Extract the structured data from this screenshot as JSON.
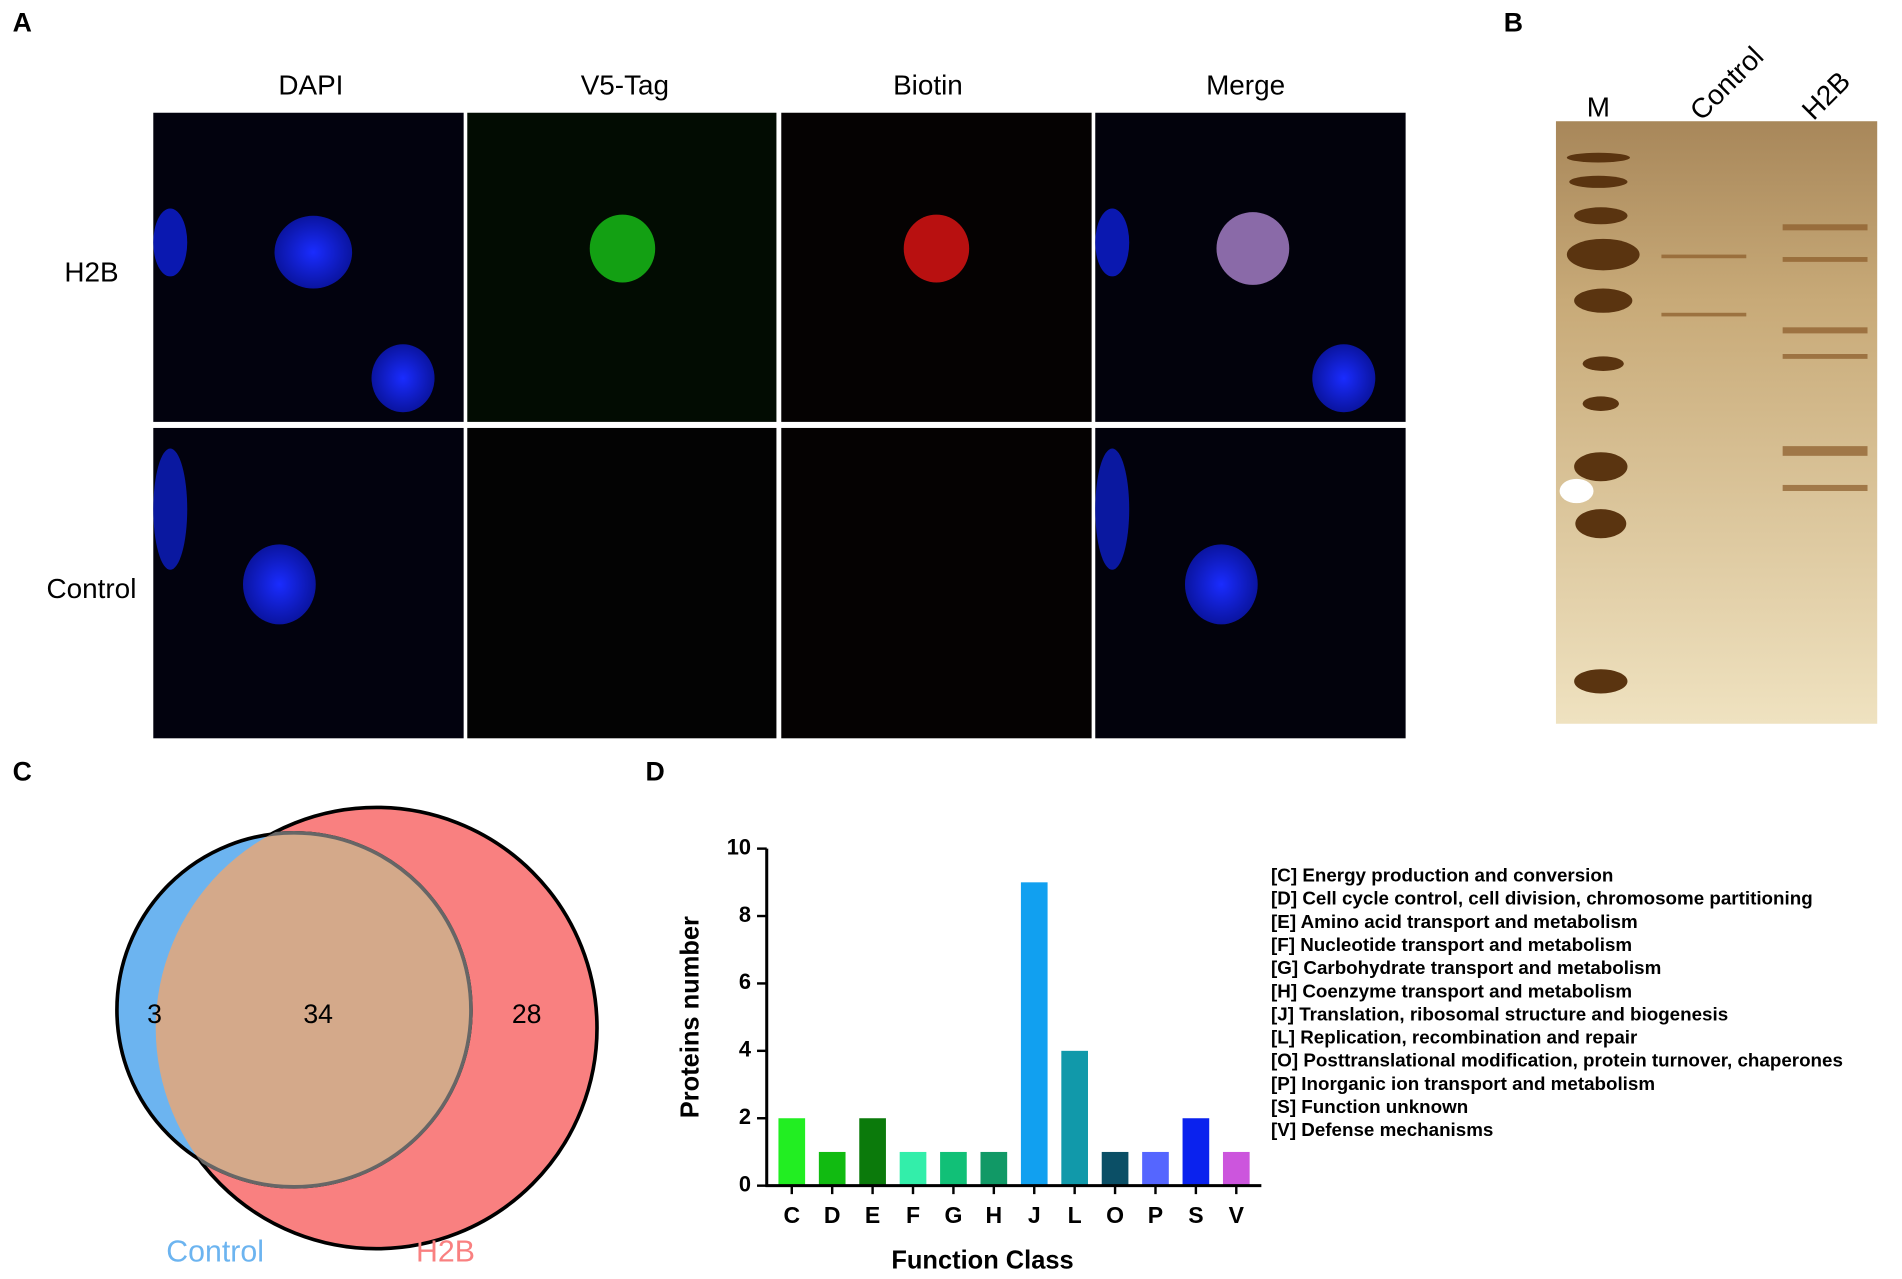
{
  "panel_labels": [
    "A",
    "B",
    "C",
    "D"
  ],
  "microscopy": {
    "columns": [
      "DAPI",
      "V5-Tag",
      "Biotin",
      "Merge"
    ],
    "rows": [
      "H2B",
      "Control"
    ]
  },
  "gel": {
    "lanes": [
      "M",
      "Control",
      "H2B"
    ]
  },
  "venn": {
    "sets": [
      {
        "name": "Control",
        "color": "#6cb4f0"
      },
      {
        "name": "H2B",
        "color": "#f98080"
      }
    ],
    "only_control": 3,
    "overlap": 34,
    "only_h2b": 28
  },
  "chart_data": {
    "type": "bar",
    "xlabel": "Function Class",
    "ylabel": "Proteins number",
    "categories": [
      "C",
      "D",
      "E",
      "F",
      "G",
      "H",
      "J",
      "L",
      "O",
      "P",
      "S",
      "V"
    ],
    "values": [
      2,
      1,
      2,
      1,
      1,
      1,
      9,
      4,
      1,
      1,
      2,
      1
    ],
    "colors": [
      "#22ee22",
      "#11bb11",
      "#0b7a0b",
      "#33eeaa",
      "#11c077",
      "#119966",
      "#11a0f0",
      "#1199aa",
      "#0b4f66",
      "#5566ff",
      "#0a22ee",
      "#cc55dd"
    ],
    "ylim": [
      0,
      10
    ],
    "yticks": [
      0,
      2,
      4,
      6,
      8,
      10
    ],
    "legend": [
      "[C] Energy production and conversion",
      "[D] Cell cycle control, cell division, chromosome partitioning",
      "[E] Amino acid transport and metabolism",
      "[F] Nucleotide transport and metabolism",
      "[G] Carbohydrate transport and metabolism",
      "[H] Coenzyme transport and metabolism",
      "[J] Translation, ribosomal structure and biogenesis",
      "[L] Replication, recombination and repair",
      "[O] Posttranslational modification, protein turnover, chaperones",
      "[P] Inorganic ion transport and metabolism",
      "[S] Function unknown",
      "[V] Defense mechanisms"
    ]
  }
}
